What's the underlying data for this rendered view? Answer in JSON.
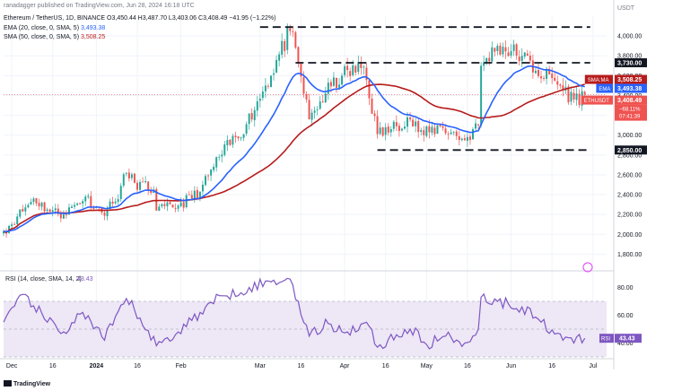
{
  "header": {
    "published": "ranadagger published on TradingView.com, Jun 28, 2024 16:18 UTC",
    "symbol_line": "Ethereum / TetherUS, 1D, BINANCE",
    "ohlc": "O3,450.44 H3,487.70 L3,403.06 C3,408.49 −41.95 (−1.22%)",
    "ema_line": "EMA (20, close, 0, SMA, 5)",
    "ema_value": "3,493.38",
    "sma_line": "SMA (50, close, 0, SMA, 5)",
    "sma_value": "3,508.25"
  },
  "colors": {
    "up": "#26a69a",
    "down": "#ef5350",
    "ema": "#2962ff",
    "sma": "#b71c1c",
    "rsi": "#7e57c2",
    "rsi_band": "#ede7f6",
    "text": "#131722",
    "muted": "#787b86"
  },
  "footer": {
    "brand": "TradingView"
  },
  "chart_data": [
    {
      "type": "candlestick",
      "title": "Ethereum / TetherUS, 1D, BINANCE",
      "y_unit": "USDT",
      "ylim": [
        1650,
        4200
      ],
      "y_ticks": [
        1800,
        2000,
        2200,
        2400,
        2600,
        2800,
        3000,
        3200,
        3400,
        3600,
        3800,
        4000
      ],
      "y_tick_labels": [
        "1,800.00",
        "2,000.00",
        "2,200.00",
        "2,400.00",
        "2,600.00",
        "2,800.00",
        "3,000.00",
        "3,200.00",
        "3,400.00",
        "3,600.00",
        "3,800.00",
        "4,000.00"
      ],
      "x_start": "2023-11-28",
      "x_end": "2024-07-06",
      "x_ticks": [
        {
          "date": "2023-12-01",
          "label": "Dec"
        },
        {
          "date": "2023-12-16",
          "label": "16"
        },
        {
          "date": "2024-01-01",
          "label": "2024"
        },
        {
          "date": "2024-01-16",
          "label": "16"
        },
        {
          "date": "2024-02-01",
          "label": "Feb"
        },
        {
          "date": "2024-03-01",
          "label": "Mar"
        },
        {
          "date": "2024-03-16",
          "label": "16"
        },
        {
          "date": "2024-04-01",
          "label": "Apr"
        },
        {
          "date": "2024-04-16",
          "label": "16"
        },
        {
          "date": "2024-05-01",
          "label": "May"
        },
        {
          "date": "2024-05-16",
          "label": "16"
        },
        {
          "date": "2024-06-01",
          "label": "Jun"
        },
        {
          "date": "2024-06-16",
          "label": "16"
        },
        {
          "date": "2024-07-01",
          "label": "Jul"
        }
      ],
      "close_anchors": [
        [
          "2023-11-28",
          2030
        ],
        [
          "2023-12-03",
          2180
        ],
        [
          "2023-12-09",
          2360
        ],
        [
          "2023-12-14",
          2250
        ],
        [
          "2023-12-20",
          2200
        ],
        [
          "2023-12-28",
          2380
        ],
        [
          "2024-01-03",
          2220
        ],
        [
          "2024-01-08",
          2330
        ],
        [
          "2024-01-12",
          2620
        ],
        [
          "2024-01-15",
          2520
        ],
        [
          "2024-01-22",
          2450
        ],
        [
          "2024-01-23",
          2240
        ],
        [
          "2024-01-31",
          2290
        ],
        [
          "2024-02-08",
          2430
        ],
        [
          "2024-02-15",
          2780
        ],
        [
          "2024-02-25",
          3110
        ],
        [
          "2024-03-03",
          3500
        ],
        [
          "2024-03-12",
          4050
        ],
        [
          "2024-03-15",
          3720
        ],
        [
          "2024-03-19",
          3160
        ],
        [
          "2024-03-25",
          3420
        ],
        [
          "2024-03-31",
          3600
        ],
        [
          "2024-04-08",
          3690
        ],
        [
          "2024-04-13",
          3010
        ],
        [
          "2024-04-18",
          3060
        ],
        [
          "2024-04-24",
          3180
        ],
        [
          "2024-04-30",
          3000
        ],
        [
          "2024-05-06",
          3090
        ],
        [
          "2024-05-15",
          2950
        ],
        [
          "2024-05-20",
          3100
        ],
        [
          "2024-05-21",
          3700
        ],
        [
          "2024-05-27",
          3900
        ],
        [
          "2024-06-05",
          3800
        ],
        [
          "2024-06-10",
          3650
        ],
        [
          "2024-06-17",
          3550
        ],
        [
          "2024-06-24",
          3360
        ],
        [
          "2024-06-28",
          3408.49
        ]
      ],
      "lines": [
        {
          "name": "EMA (20, close, 0, SMA, 5)",
          "value_label": "3,493.38",
          "color": "#2962ff"
        },
        {
          "name": "SMA (50, close, 0, SMA, 5)",
          "value_label": "3,508.25",
          "color": "#b71c1c"
        }
      ],
      "levels": [
        {
          "value": 4090,
          "from": "2024-03-01",
          "to": "2024-06-30",
          "label": ""
        },
        {
          "value": 3730,
          "from": "2024-03-14",
          "to": "2024-06-30",
          "label": "3,730.00"
        },
        {
          "value": 2850,
          "from": "2024-04-13",
          "to": "2024-06-30",
          "label": "2,850.00"
        }
      ],
      "price_tags": [
        {
          "text": "3,508.25",
          "color": "#b71c1c",
          "label": "SMA:MA",
          "label_color": "#b71c1c"
        },
        {
          "text": "3,493.38",
          "color": "#2962ff",
          "label": "EMA",
          "label_color": "#2962ff"
        },
        {
          "text": "3,408.49",
          "color": "#ef5350",
          "label": "ETHUSDT",
          "label_color": "#ef5350"
        }
      ],
      "price_tag_sub": [
        "−68.11%",
        "07:41:39"
      ],
      "last_close": 3408.49
    },
    {
      "type": "line",
      "title": "RSI (14, close, SMA, 14, 2)",
      "ylim": [
        30,
        90
      ],
      "y_ticks": [
        40,
        60,
        80
      ],
      "y_tick_labels": [
        "40.00",
        "60.00",
        "80.00"
      ],
      "band": [
        30,
        70
      ],
      "series": [
        {
          "name": "RSI",
          "value_label": "43.43",
          "points": [
            [
              "2023-11-28",
              55
            ],
            [
              "2023-12-06",
              75
            ],
            [
              "2023-12-14",
              55
            ],
            [
              "2023-12-20",
              48
            ],
            [
              "2023-12-27",
              62
            ],
            [
              "2024-01-04",
              42
            ],
            [
              "2024-01-12",
              72
            ],
            [
              "2024-01-17",
              58
            ],
            [
              "2024-01-23",
              38
            ],
            [
              "2024-01-31",
              48
            ],
            [
              "2024-02-08",
              62
            ],
            [
              "2024-02-16",
              74
            ],
            [
              "2024-02-26",
              80
            ],
            [
              "2024-03-05",
              84
            ],
            [
              "2024-03-12",
              86
            ],
            [
              "2024-03-15",
              70
            ],
            [
              "2024-03-19",
              45
            ],
            [
              "2024-03-26",
              54
            ],
            [
              "2024-04-02",
              48
            ],
            [
              "2024-04-09",
              55
            ],
            [
              "2024-04-13",
              37
            ],
            [
              "2024-04-20",
              46
            ],
            [
              "2024-04-25",
              50
            ],
            [
              "2024-05-01",
              39
            ],
            [
              "2024-05-08",
              45
            ],
            [
              "2024-05-15",
              40
            ],
            [
              "2024-05-20",
              50
            ],
            [
              "2024-05-21",
              73
            ],
            [
              "2024-05-27",
              70
            ],
            [
              "2024-06-05",
              66
            ],
            [
              "2024-06-12",
              55
            ],
            [
              "2024-06-18",
              47
            ],
            [
              "2024-06-24",
              40
            ],
            [
              "2024-06-28",
              43.43
            ]
          ]
        }
      ],
      "last_value": 43.43
    }
  ]
}
